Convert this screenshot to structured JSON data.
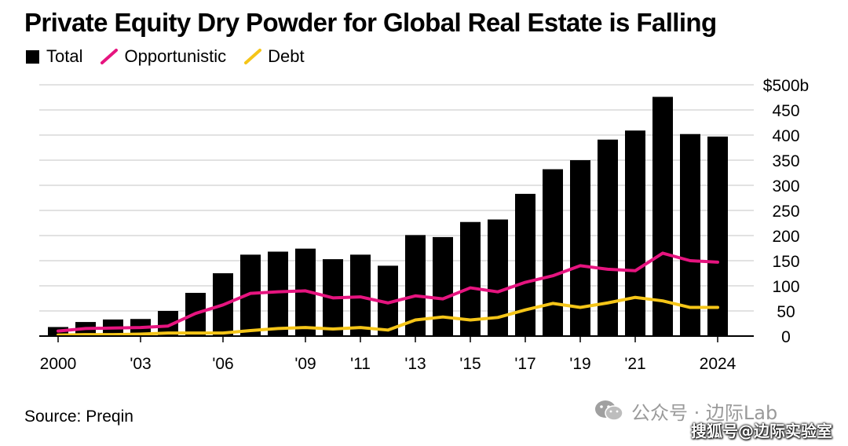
{
  "chart_data": {
    "type": "bar",
    "title": "Private Equity Dry Powder for Global Real Estate is Falling",
    "x": [
      2000,
      2001,
      2002,
      2003,
      2004,
      2005,
      2006,
      2007,
      2008,
      2009,
      2010,
      2011,
      2012,
      2013,
      2014,
      2015,
      2016,
      2017,
      2018,
      2019,
      2020,
      2021,
      2022,
      2023,
      2024
    ],
    "x_tick_labels": [
      "2000",
      "'03",
      "'06",
      "'09",
      "'11",
      "'13",
      "'15",
      "'17",
      "'19",
      "'21",
      "2024"
    ],
    "x_tick_years": [
      2000,
      2003,
      2006,
      2009,
      2011,
      2013,
      2015,
      2017,
      2019,
      2021,
      2024
    ],
    "y_tick_labels": [
      "0",
      "50",
      "100",
      "150",
      "200",
      "250",
      "300",
      "350",
      "400",
      "450",
      "$500b"
    ],
    "ylim": [
      0,
      500
    ],
    "series": [
      {
        "name": "Total",
        "kind": "bar",
        "color": "#000000",
        "values": [
          18,
          28,
          33,
          34,
          50,
          86,
          125,
          162,
          168,
          174,
          153,
          162,
          140,
          201,
          197,
          227,
          232,
          283,
          332,
          350,
          391,
          409,
          476,
          402,
          397
        ]
      },
      {
        "name": "Opportunistic",
        "kind": "line",
        "color": "#e6147f",
        "values": [
          10,
          15,
          16,
          17,
          20,
          45,
          62,
          85,
          88,
          90,
          76,
          78,
          66,
          80,
          74,
          96,
          88,
          107,
          120,
          140,
          133,
          130,
          165,
          150,
          147
        ]
      },
      {
        "name": "Debt",
        "kind": "line",
        "color": "#f5c518",
        "values": [
          2,
          3,
          3,
          4,
          6,
          6,
          6,
          11,
          15,
          17,
          14,
          17,
          12,
          32,
          38,
          32,
          37,
          52,
          65,
          57,
          66,
          77,
          70,
          57,
          57
        ]
      }
    ]
  },
  "legend": {
    "total": "Total",
    "opportunistic": "Opportunistic",
    "debt": "Debt"
  },
  "source": "Source: Preqin",
  "watermark": {
    "text": "公众号 · 边际Lab",
    "sub": "搜狐号@边际实验室"
  }
}
